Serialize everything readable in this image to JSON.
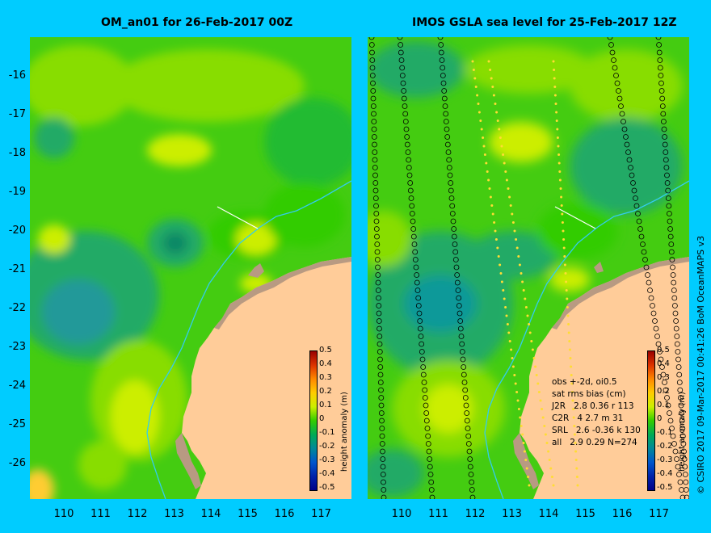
{
  "panels": [
    {
      "title": "OM_an01 for 26-Feb-2017 00Z",
      "lat_ticks": [
        "-16",
        "-17",
        "-18",
        "-19",
        "-20",
        "-21",
        "-22",
        "-23",
        "-24",
        "-25",
        "-26"
      ],
      "lon_ticks": [
        "110",
        "111",
        "112",
        "113",
        "114",
        "115",
        "116",
        "117"
      ],
      "colorbar": {
        "title": "height anomaly (m)",
        "labels": [
          "0.5",
          "0.4",
          "0.3",
          "0.2",
          "0.1",
          "0",
          "-0.1",
          "-0.2",
          "-0.3",
          "-0.4",
          "-0.5"
        ]
      }
    },
    {
      "title": "IMOS GSLA sea level  for 25-Feb-2017 12Z",
      "lat_ticks": [],
      "lon_ticks": [
        "110",
        "111",
        "112",
        "113",
        "114",
        "115",
        "116",
        "117"
      ],
      "colorbar": {
        "title": "height anomaly (m)",
        "labels": [
          "0.5",
          "0.4",
          "0.3",
          "0.2",
          "0.1",
          "0",
          "-0.1",
          "-0.2",
          "-0.3",
          "-0.4",
          "-0.5"
        ]
      },
      "stats": {
        "header": "obs +-2d, oi0.5",
        "subheader": "sat rms bias (cm)",
        "rows": [
          "J2R   2.8 0.36 r 113",
          "C2R   4 2.7 m 31",
          "SRL   2.6 -0.36 k 130",
          "all   2.9 0.29 N=274"
        ]
      }
    }
  ],
  "credit": "© CSIRO 2017   09-Mar-2017 00:41:26 BoM OceanMAPS v3",
  "colors": {
    "background": "#00ccff",
    "land": "#ffcc99",
    "coast_shelf": "#b89a82",
    "field_base": "#33cc00",
    "field_light": "#88dd00",
    "field_yellow": "#ccee00",
    "field_dark": "#00aa33",
    "field_teal": "#22aa88"
  }
}
